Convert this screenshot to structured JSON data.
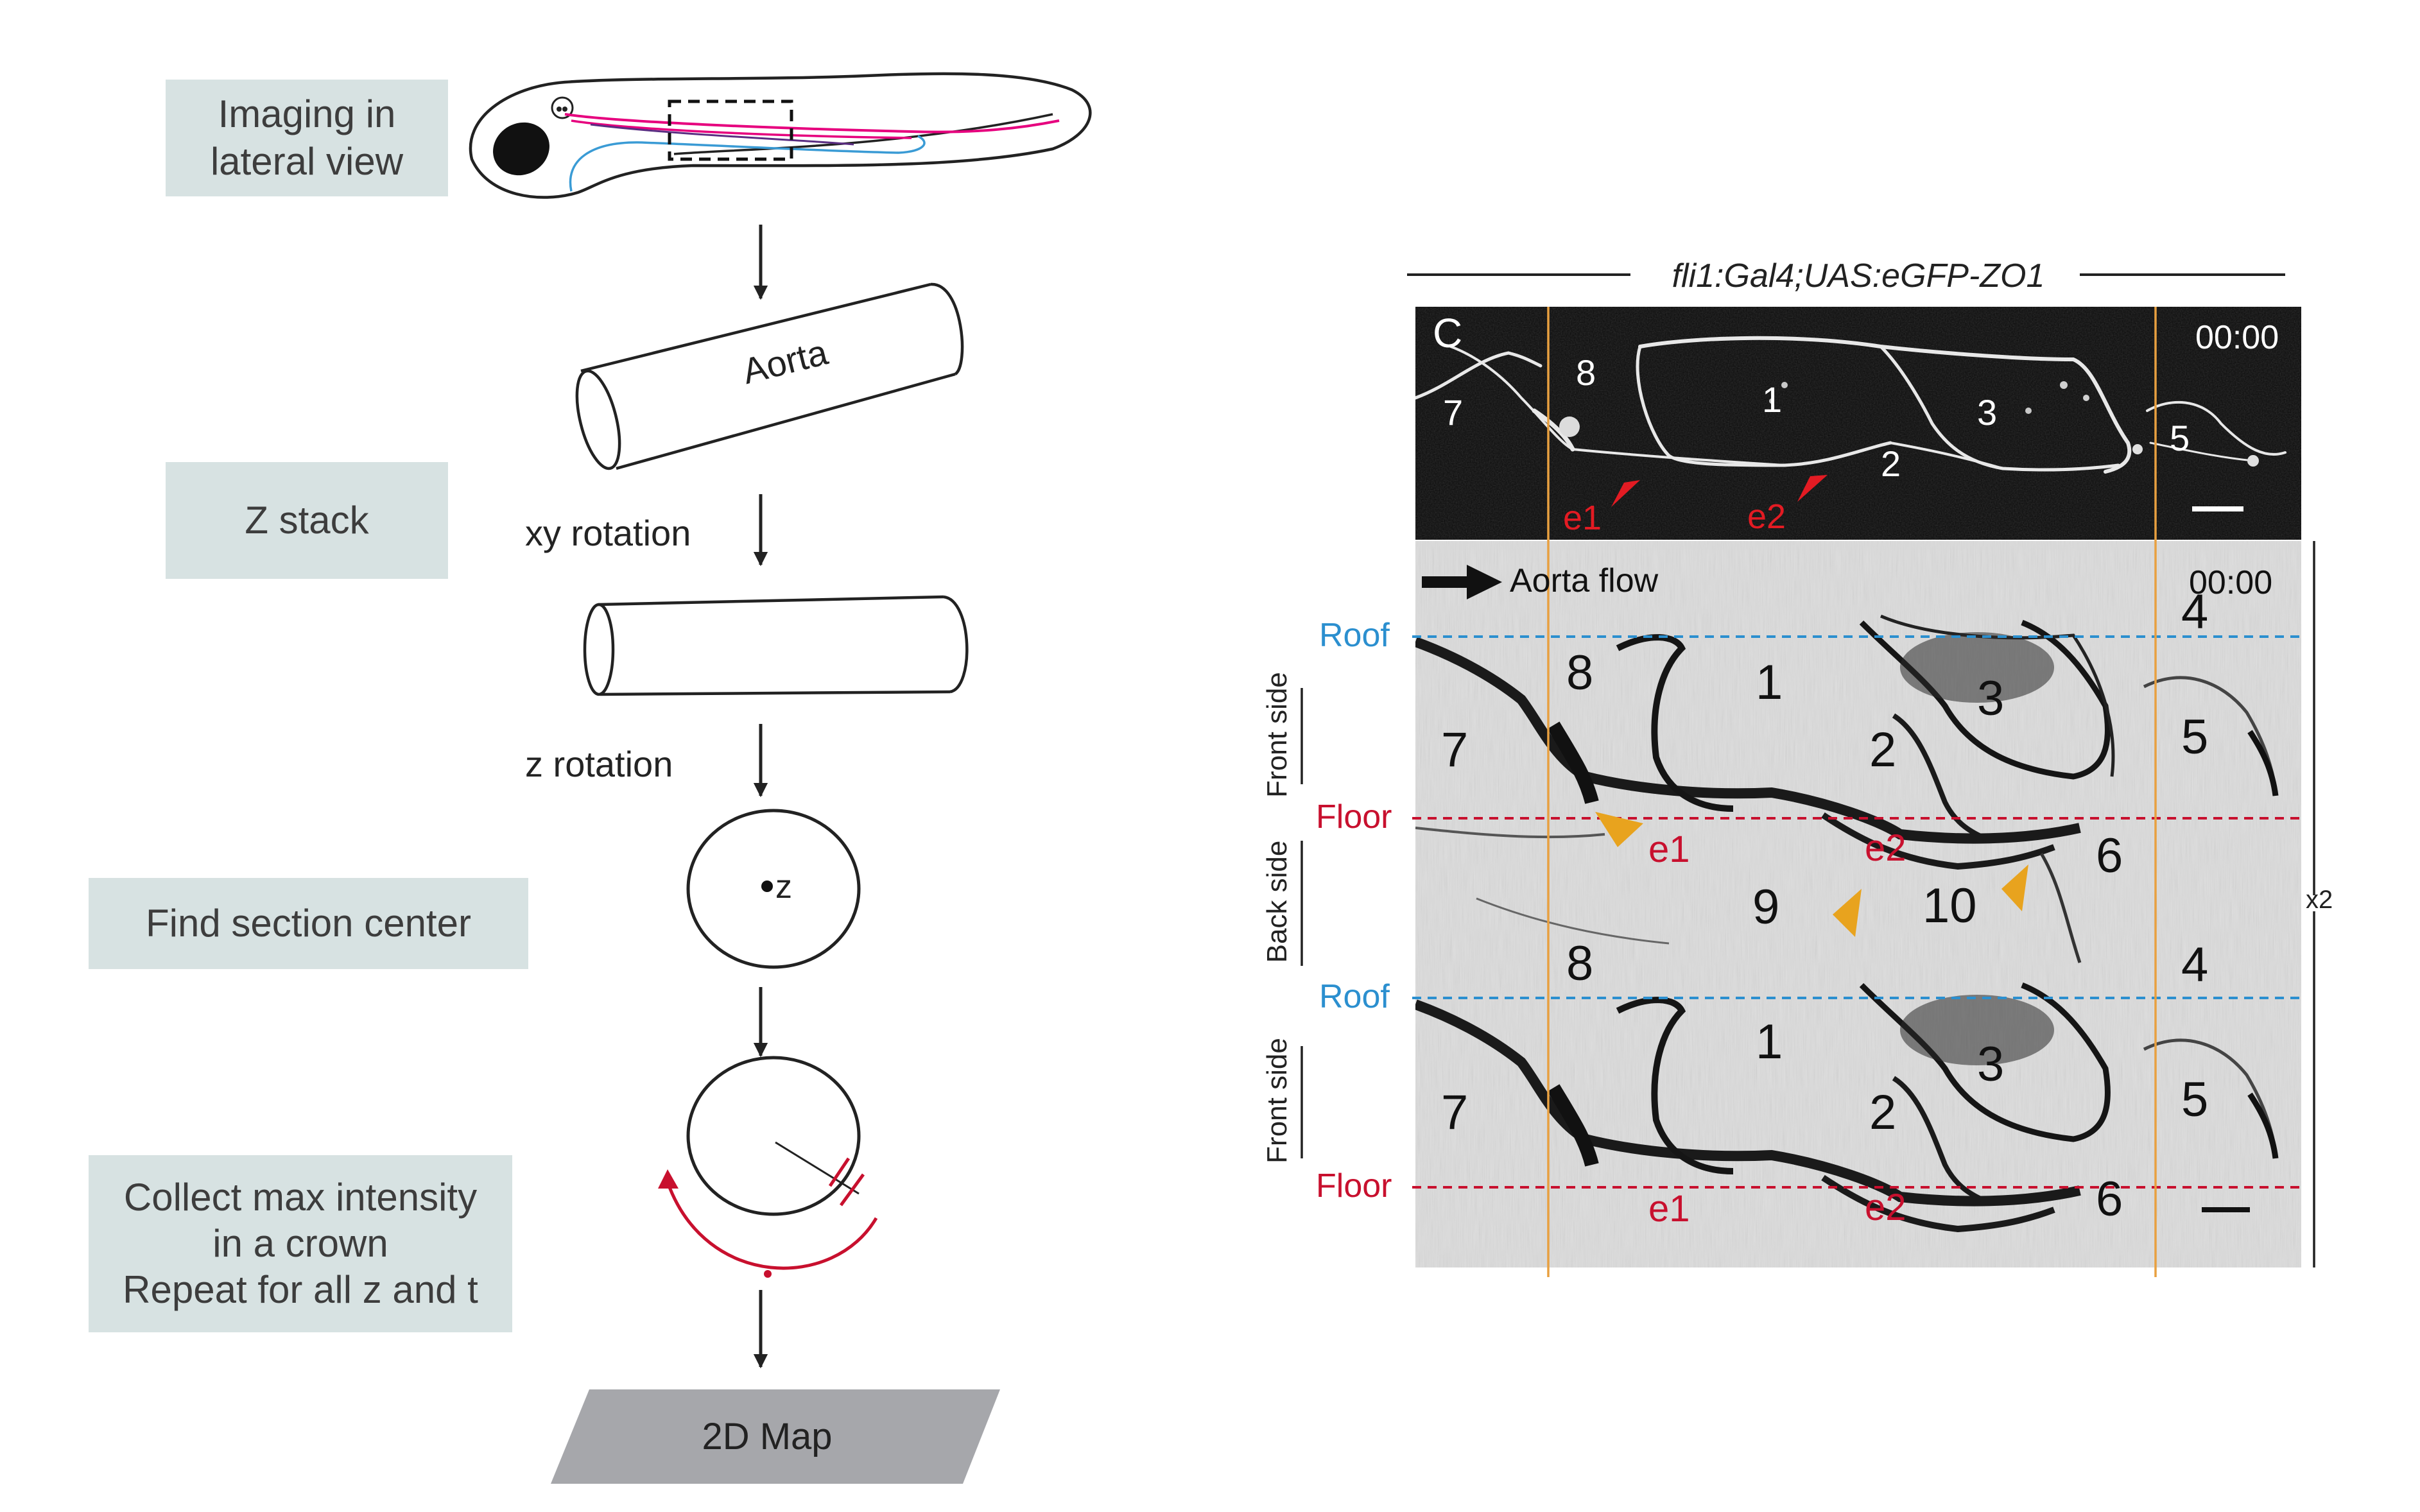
{
  "flowchart": {
    "steps": {
      "imaging": "Imaging in\nlateral view",
      "zstack": "Z stack",
      "center": "Find section center",
      "collect": "Collect max intensity\nin a crown\nRepeat for all z and t",
      "map": "2D Map"
    },
    "rotations": {
      "xy": "xy rotation",
      "z": "z rotation"
    },
    "aorta_label": "Aorta",
    "center_label": "z"
  },
  "micrograph": {
    "title": "fli1:Gal4;UAS:eGFP-ZO1",
    "panel_letter": "C",
    "timestamp_top": "00:00",
    "timestamp_map": "00:00",
    "flow_label": "Aorta flow",
    "roof_label": "Roof",
    "floor_label": "Floor",
    "front_side": "Front side",
    "back_side": "Back side",
    "duplication": "x2",
    "top_cells": [
      "7",
      "8",
      "1",
      "3",
      "2",
      "5"
    ],
    "top_events": [
      "e1",
      "e2"
    ],
    "map_cells_upper": [
      "4",
      "8",
      "1",
      "3",
      "7",
      "2",
      "5",
      "6",
      "9",
      "10"
    ],
    "map_events_upper": [
      "e1",
      "e2"
    ],
    "map_cells_lower": [
      "8",
      "4",
      "1",
      "3",
      "7",
      "2",
      "5",
      "6"
    ],
    "map_events_lower": [
      "e1",
      "e2"
    ]
  },
  "colors": {
    "roof": "#2b8fcf",
    "floor": "#c8102e",
    "event": "#c8102e",
    "arrowhead": "#e8a31e",
    "guide": "#e8a040",
    "box": "#d7e2e2",
    "map_box": "#a6a7ab"
  }
}
